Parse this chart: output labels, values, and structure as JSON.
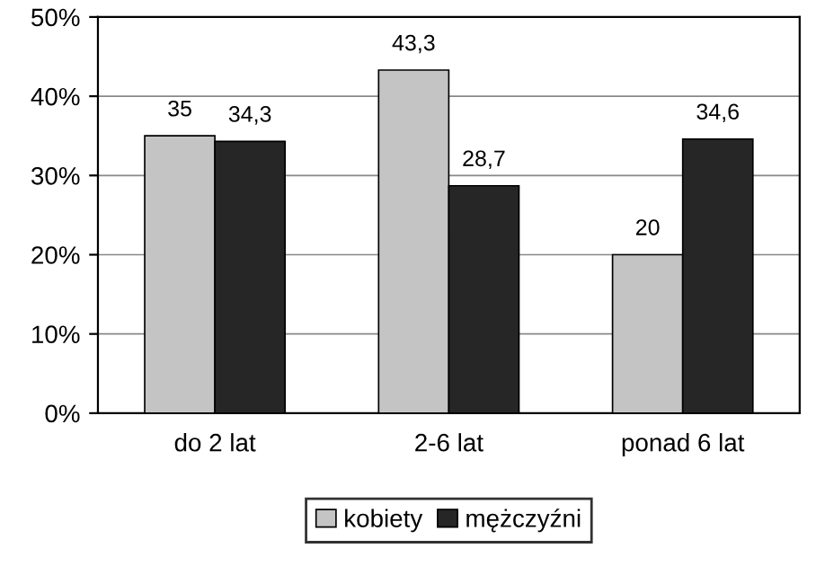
{
  "chart_data": {
    "type": "bar",
    "categories": [
      "do 2 lat",
      "2-6 lat",
      "ponad 6 lat"
    ],
    "series": [
      {
        "name": "kobiety",
        "color": "#c4c4c4",
        "values": [
          35,
          43.3,
          20
        ],
        "value_labels": [
          "35",
          "43,3",
          "20"
        ]
      },
      {
        "name": "mężczyźni",
        "color": "#262626",
        "values": [
          34.3,
          28.7,
          34.6
        ],
        "value_labels": [
          "34,3",
          "28,7",
          "34,6"
        ]
      }
    ],
    "ylim": [
      0,
      50
    ],
    "yticks": [
      {
        "value": 0,
        "label": "0%"
      },
      {
        "value": 10,
        "label": "10%"
      },
      {
        "value": 20,
        "label": "20%"
      },
      {
        "value": 30,
        "label": "30%"
      },
      {
        "value": 40,
        "label": "40%"
      },
      {
        "value": 50,
        "label": "50%"
      }
    ],
    "grid": "y",
    "legend": "bottom"
  }
}
